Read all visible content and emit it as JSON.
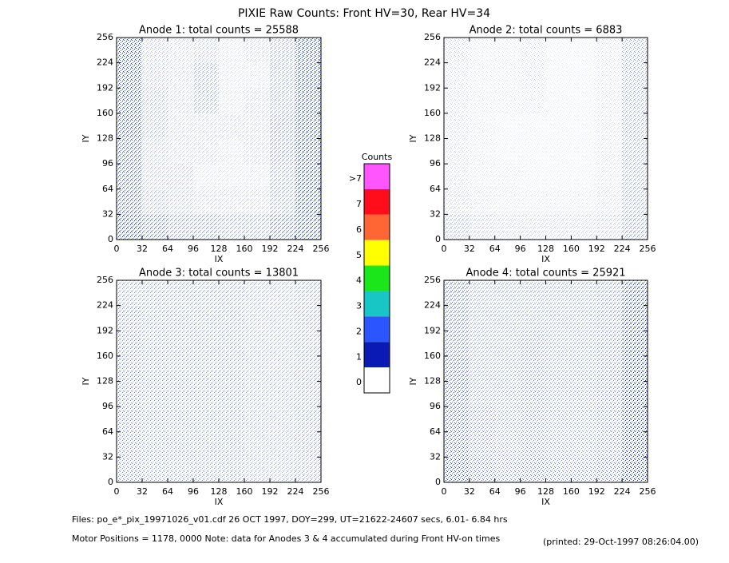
{
  "title": "PIXIE Raw Counts:  Front HV=30, Rear HV=34",
  "footer": [
    "Files: po_e*_pix_19971026_v01.cdf    26 OCT 1997, DOY=299, UT=21622-24607 secs,  6.01- 6.84 hrs",
    "Motor Positions = 1178, 0000   Note: data for Anodes 3 & 4 accumulated during Front HV-on times",
    "(printed: 29-Oct-1997 08:26:04.00)"
  ],
  "chart_data": [
    {
      "type": "heatmap",
      "title": "Anode 1: total counts = 25588",
      "xlabel": "IX",
      "ylabel": "IY",
      "xlim": [
        0,
        256
      ],
      "ylim": [
        0,
        256
      ],
      "xticks": [
        0,
        32,
        64,
        96,
        128,
        160,
        192,
        224,
        256
      ],
      "yticks": [
        0,
        32,
        64,
        96,
        128,
        160,
        192,
        224,
        256
      ],
      "color": "#1830e0",
      "values": [
        [
          0.6,
          0.2,
          0.15,
          0.2,
          0.1,
          0.15,
          0.3,
          0.7
        ],
        [
          0.6,
          0.2,
          0.15,
          0.3,
          0.1,
          0.1,
          0.3,
          0.7
        ],
        [
          0.6,
          0.25,
          0.15,
          0.3,
          0.1,
          0.15,
          0.3,
          0.7
        ],
        [
          0.6,
          0.25,
          0.15,
          0.15,
          0.15,
          0.15,
          0.35,
          0.7
        ],
        [
          0.55,
          0.2,
          0.15,
          0.15,
          0.1,
          0.15,
          0.35,
          0.7
        ],
        [
          0.55,
          0.2,
          0.2,
          0.1,
          0.1,
          0.1,
          0.3,
          0.7
        ],
        [
          0.55,
          0.25,
          0.2,
          0.15,
          0.15,
          0.15,
          0.3,
          0.7
        ],
        [
          0.65,
          0.45,
          0.35,
          0.35,
          0.3,
          0.3,
          0.45,
          0.75
        ]
      ]
    },
    {
      "type": "heatmap",
      "title": "Anode 2: total counts = 6883",
      "xlabel": "IX",
      "ylabel": "IY",
      "xlim": [
        0,
        256
      ],
      "ylim": [
        0,
        256
      ],
      "xticks": [
        0,
        32,
        64,
        96,
        128,
        160,
        192,
        224,
        256
      ],
      "yticks": [
        0,
        32,
        64,
        96,
        128,
        160,
        192,
        224,
        256
      ],
      "color": "#1830e0",
      "values": [
        [
          0.15,
          0.08,
          0.08,
          0.12,
          0.06,
          0.06,
          0.1,
          0.3
        ],
        [
          0.12,
          0.08,
          0.08,
          0.12,
          0.06,
          0.06,
          0.1,
          0.3
        ],
        [
          0.12,
          0.08,
          0.08,
          0.1,
          0.06,
          0.06,
          0.1,
          0.3
        ],
        [
          0.12,
          0.08,
          0.06,
          0.06,
          0.06,
          0.06,
          0.1,
          0.3
        ],
        [
          0.12,
          0.08,
          0.06,
          0.06,
          0.06,
          0.06,
          0.1,
          0.3
        ],
        [
          0.12,
          0.08,
          0.08,
          0.06,
          0.06,
          0.06,
          0.1,
          0.3
        ],
        [
          0.15,
          0.1,
          0.08,
          0.08,
          0.08,
          0.08,
          0.12,
          0.3
        ],
        [
          0.25,
          0.18,
          0.15,
          0.15,
          0.15,
          0.15,
          0.18,
          0.35
        ]
      ]
    },
    {
      "type": "heatmap",
      "title": "Anode 3: total counts = 13801",
      "xlabel": "IX",
      "ylabel": "IY",
      "xlim": [
        0,
        256
      ],
      "ylim": [
        0,
        256
      ],
      "xticks": [
        0,
        32,
        64,
        96,
        128,
        160,
        192,
        224,
        256
      ],
      "yticks": [
        0,
        32,
        64,
        96,
        128,
        160,
        192,
        224,
        256
      ],
      "color": "#1830e0",
      "values": [
        [
          0.3,
          0.3,
          0.3,
          0.3,
          0.3,
          0.25,
          0.25,
          0.3
        ],
        [
          0.35,
          0.3,
          0.3,
          0.3,
          0.3,
          0.25,
          0.25,
          0.3
        ],
        [
          0.35,
          0.3,
          0.3,
          0.3,
          0.3,
          0.25,
          0.25,
          0.3
        ],
        [
          0.35,
          0.3,
          0.3,
          0.3,
          0.3,
          0.25,
          0.25,
          0.3
        ],
        [
          0.35,
          0.3,
          0.3,
          0.3,
          0.3,
          0.25,
          0.25,
          0.3
        ],
        [
          0.35,
          0.3,
          0.3,
          0.3,
          0.3,
          0.25,
          0.25,
          0.3
        ],
        [
          0.35,
          0.3,
          0.3,
          0.3,
          0.3,
          0.25,
          0.25,
          0.3
        ],
        [
          0.35,
          0.3,
          0.3,
          0.3,
          0.3,
          0.25,
          0.25,
          0.3
        ]
      ]
    },
    {
      "type": "heatmap",
      "title": "Anode 4: total counts = 25921",
      "xlabel": "IX",
      "ylabel": "IY",
      "xlim": [
        0,
        256
      ],
      "ylim": [
        0,
        256
      ],
      "xticks": [
        0,
        32,
        64,
        96,
        128,
        160,
        192,
        224,
        256
      ],
      "yticks": [
        0,
        32,
        64,
        96,
        128,
        160,
        192,
        224,
        256
      ],
      "color": "#1830e0",
      "values": [
        [
          0.45,
          0.3,
          0.3,
          0.3,
          0.3,
          0.3,
          0.35,
          0.6
        ],
        [
          0.45,
          0.3,
          0.3,
          0.3,
          0.3,
          0.3,
          0.35,
          0.65
        ],
        [
          0.45,
          0.3,
          0.3,
          0.35,
          0.3,
          0.3,
          0.35,
          0.65
        ],
        [
          0.5,
          0.3,
          0.3,
          0.35,
          0.3,
          0.3,
          0.35,
          0.65
        ],
        [
          0.5,
          0.3,
          0.3,
          0.35,
          0.3,
          0.3,
          0.35,
          0.65
        ],
        [
          0.5,
          0.35,
          0.3,
          0.35,
          0.3,
          0.3,
          0.35,
          0.65
        ],
        [
          0.5,
          0.35,
          0.3,
          0.35,
          0.3,
          0.3,
          0.35,
          0.65
        ],
        [
          0.55,
          0.4,
          0.35,
          0.4,
          0.35,
          0.35,
          0.4,
          0.7
        ]
      ]
    },
    {
      "type": "colorbar",
      "title": "Counts",
      "categories": [
        ">7",
        "7",
        "6",
        "5",
        "4",
        "3",
        "2",
        "1",
        "0"
      ],
      "colors": [
        "#ff55ff",
        "#ff0d1a",
        "#ff6633",
        "#ffff00",
        "#1ae61a",
        "#19c6c6",
        "#2a55ff",
        "#0a1ab4",
        "#ffffff"
      ]
    }
  ]
}
